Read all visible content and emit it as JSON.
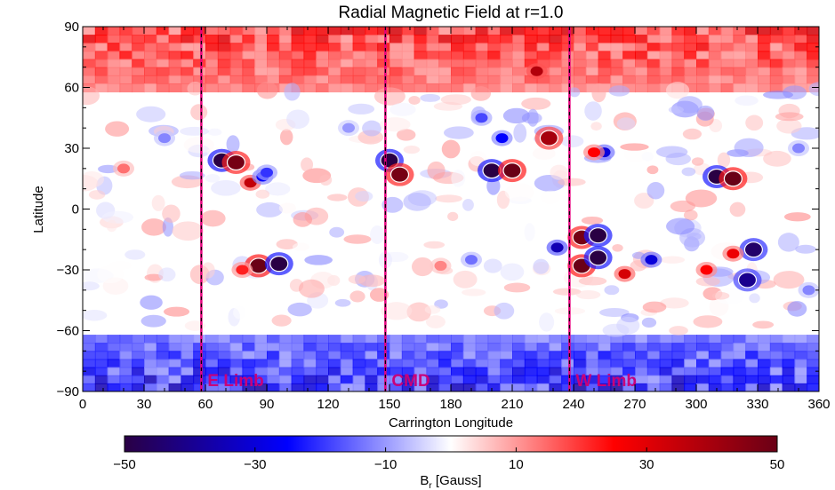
{
  "chart_data": {
    "type": "heatmap",
    "title": "Radial Magnetic Field at r=1.0",
    "xlabel": "Carrington Longitude",
    "ylabel": "Latitude",
    "xlim": [
      0,
      360
    ],
    "ylim": [
      -90,
      90
    ],
    "xticks": [
      0,
      30,
      60,
      90,
      120,
      150,
      180,
      210,
      240,
      270,
      300,
      330,
      360
    ],
    "yticks": [
      -90,
      -60,
      -30,
      0,
      30,
      60,
      90
    ],
    "xtick_labels": [
      "0",
      "30",
      "60",
      "90",
      "120",
      "150",
      "180",
      "210",
      "240",
      "270",
      "300",
      "330",
      "360"
    ],
    "ytick_labels": [
      "−90",
      "−60",
      "−30",
      "0",
      "30",
      "60",
      "90"
    ],
    "colorbar": {
      "label_main": "B",
      "label_sub": "r",
      "label_unit": " [Gauss]",
      "range": [
        -50,
        50
      ],
      "ticks": [
        -50,
        -30,
        -10,
        10,
        30,
        50
      ],
      "tick_labels": [
        "−50",
        "−30",
        "−10",
        "10",
        "30",
        "50"
      ],
      "colormap": [
        "#2a0044",
        "#0000ff",
        "#ffffff",
        "#ff0000",
        "#6a0016"
      ]
    },
    "limb_lines": [
      {
        "label": "E Limb",
        "longitude": 58
      },
      {
        "label": "CMD",
        "longitude": 148
      },
      {
        "label": "W Limb",
        "longitude": 238
      }
    ],
    "line_color": "#e6007e",
    "features": [
      {
        "lon": 68,
        "lat": 24,
        "value": -50
      },
      {
        "lon": 75,
        "lat": 23,
        "value": 48
      },
      {
        "lon": 82,
        "lat": 13,
        "value": 35
      },
      {
        "lon": 88,
        "lat": 16,
        "value": -25
      },
      {
        "lon": 86,
        "lat": -28,
        "value": 50
      },
      {
        "lon": 96,
        "lat": -27,
        "value": -50
      },
      {
        "lon": 78,
        "lat": -30,
        "value": 22
      },
      {
        "lon": 150,
        "lat": 24,
        "value": -50
      },
      {
        "lon": 155,
        "lat": 17,
        "value": 48
      },
      {
        "lon": 200,
        "lat": 19,
        "value": -50
      },
      {
        "lon": 210,
        "lat": 19,
        "value": 50
      },
      {
        "lon": 205,
        "lat": 35,
        "value": -25
      },
      {
        "lon": 228,
        "lat": 35,
        "value": 40
      },
      {
        "lon": 195,
        "lat": 45,
        "value": -18
      },
      {
        "lon": 222,
        "lat": 68,
        "value": 38
      },
      {
        "lon": 244,
        "lat": -14,
        "value": 48
      },
      {
        "lon": 252,
        "lat": -13,
        "value": -50
      },
      {
        "lon": 244,
        "lat": -28,
        "value": 50
      },
      {
        "lon": 252,
        "lat": -24,
        "value": -50
      },
      {
        "lon": 232,
        "lat": -19,
        "value": -35
      },
      {
        "lon": 278,
        "lat": -25,
        "value": -30
      },
      {
        "lon": 265,
        "lat": -32,
        "value": 32
      },
      {
        "lon": 310,
        "lat": 16,
        "value": -50
      },
      {
        "lon": 318,
        "lat": 15,
        "value": 50
      },
      {
        "lon": 328,
        "lat": -20,
        "value": -45
      },
      {
        "lon": 325,
        "lat": -35,
        "value": -40
      },
      {
        "lon": 318,
        "lat": -22,
        "value": 28
      },
      {
        "lon": 305,
        "lat": -30,
        "value": 25
      },
      {
        "lon": 255,
        "lat": 28,
        "value": -30
      },
      {
        "lon": 250,
        "lat": 28,
        "value": 25
      },
      {
        "lon": 90,
        "lat": 18,
        "value": -20
      },
      {
        "lon": 20,
        "lat": 20,
        "value": 14
      },
      {
        "lon": 40,
        "lat": 35,
        "value": -12
      },
      {
        "lon": 130,
        "lat": 40,
        "value": -10
      },
      {
        "lon": 175,
        "lat": -28,
        "value": 12
      },
      {
        "lon": 190,
        "lat": -25,
        "value": -14
      },
      {
        "lon": 350,
        "lat": 30,
        "value": -12
      },
      {
        "lon": 355,
        "lat": -40,
        "value": -12
      }
    ]
  }
}
